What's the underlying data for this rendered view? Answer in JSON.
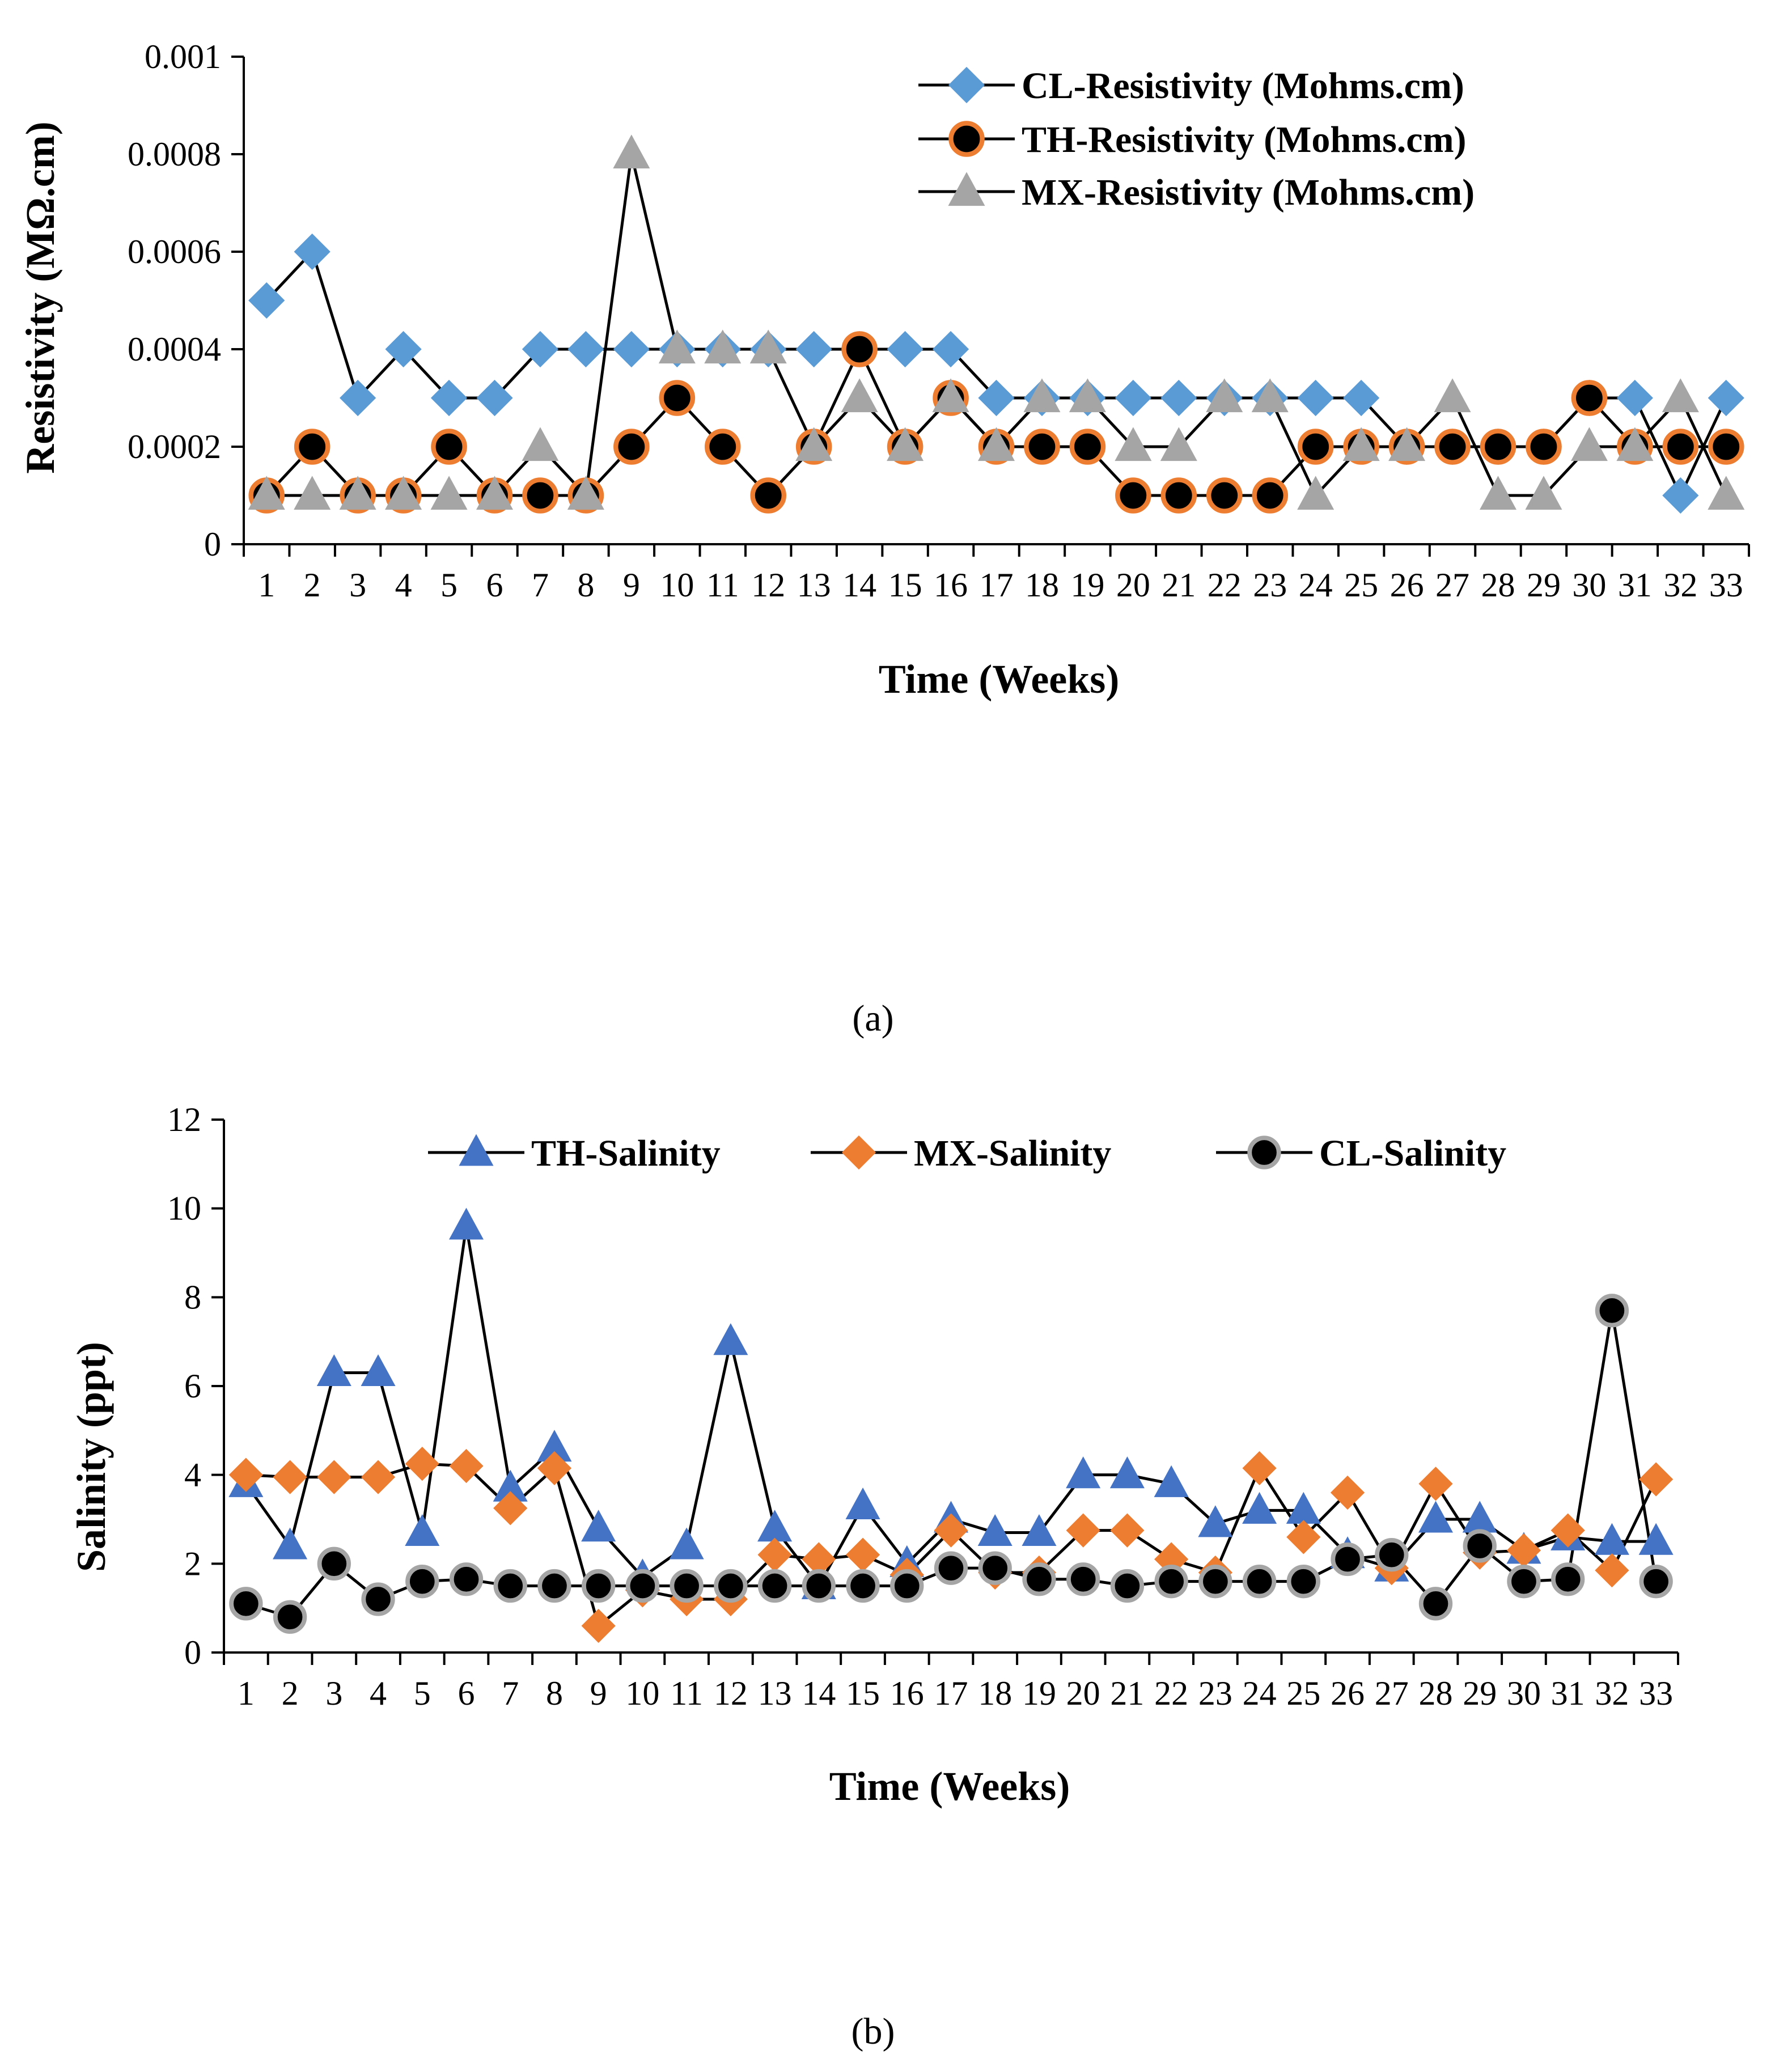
{
  "chart_data": [
    {
      "type": "line",
      "caption": "(a)",
      "xlabel": "Time (Weeks)",
      "ylabel": "Resistivity (MΩ.cm)",
      "ylim": [
        0,
        0.001
      ],
      "yticks": [
        "0",
        "0.0002",
        "0.0004",
        "0.0006",
        "0.0008",
        "0.001"
      ],
      "x": [
        1,
        2,
        3,
        4,
        5,
        6,
        7,
        8,
        9,
        10,
        11,
        12,
        13,
        14,
        15,
        16,
        17,
        18,
        19,
        20,
        21,
        22,
        23,
        24,
        25,
        26,
        27,
        28,
        29,
        30,
        31,
        32,
        33
      ],
      "legend_position": "top-right",
      "series": [
        {
          "name": "CL-Resistivity (Mohms.cm)",
          "marker": "diamond",
          "fill": "#5b9bd5",
          "stroke": "#5b9bd5",
          "values": [
            0.0005,
            0.0006,
            0.0003,
            0.0004,
            0.0003,
            0.0003,
            0.0004,
            0.0004,
            0.0004,
            0.0004,
            0.0004,
            0.0004,
            0.0004,
            0.0004,
            0.0004,
            0.0004,
            0.0003,
            0.0003,
            0.0003,
            0.0003,
            0.0003,
            0.0003,
            0.0003,
            0.0003,
            0.0003,
            0.0002,
            0.0002,
            0.0002,
            0.0002,
            0.0003,
            0.0003,
            0.0001,
            0.0003
          ]
        },
        {
          "name": "TH-Resistivity (Mohms.cm)",
          "marker": "circle",
          "fill": "#000000",
          "stroke": "#ed7d31",
          "values": [
            0.0001,
            0.0002,
            0.0001,
            0.0001,
            0.0002,
            0.0001,
            0.0001,
            0.0001,
            0.0002,
            0.0003,
            0.0002,
            0.0001,
            0.0002,
            0.0004,
            0.0002,
            0.0003,
            0.0002,
            0.0002,
            0.0002,
            0.0001,
            0.0001,
            0.0001,
            0.0001,
            0.0002,
            0.0002,
            0.0002,
            0.0002,
            0.0002,
            0.0002,
            0.0003,
            0.0002,
            0.0002,
            0.0002
          ]
        },
        {
          "name": "MX-Resistivity (Mohms.cm)",
          "marker": "triangle",
          "fill": "#a5a5a5",
          "stroke": "#a5a5a5",
          "values": [
            0.0001,
            0.0001,
            0.0001,
            0.0001,
            0.0001,
            0.0001,
            0.0002,
            0.0001,
            0.0008,
            0.0004,
            0.0004,
            0.0004,
            0.0002,
            0.0003,
            0.0002,
            0.0003,
            0.0002,
            0.0003,
            0.0003,
            0.0002,
            0.0002,
            0.0003,
            0.0003,
            0.0001,
            0.0002,
            0.0002,
            0.0003,
            0.0001,
            0.0001,
            0.0002,
            0.0002,
            0.0003,
            0.0001
          ]
        }
      ]
    },
    {
      "type": "line",
      "caption": "(b)",
      "xlabel": "Time (Weeks)",
      "ylabel": "Salinity (ppt)",
      "ylim": [
        0,
        12
      ],
      "yticks": [
        "0",
        "2",
        "4",
        "6",
        "8",
        "10",
        "12"
      ],
      "x": [
        1,
        2,
        3,
        4,
        5,
        6,
        7,
        8,
        9,
        10,
        11,
        12,
        13,
        14,
        15,
        16,
        17,
        18,
        19,
        20,
        21,
        22,
        23,
        24,
        25,
        26,
        27,
        28,
        29,
        30,
        31,
        32,
        33
      ],
      "legend_position": "top",
      "series": [
        {
          "name": "TH-Salinity",
          "marker": "triangle",
          "fill": "#4472c4",
          "stroke": "#4472c4",
          "values": [
            3.8,
            2.4,
            6.3,
            6.3,
            2.7,
            9.6,
            3.7,
            4.6,
            2.8,
            1.7,
            2.4,
            7.0,
            2.8,
            1.5,
            3.3,
            2.0,
            3.0,
            2.7,
            2.7,
            4.0,
            4.0,
            3.8,
            2.9,
            3.2,
            3.2,
            2.2,
            1.9,
            3.0,
            3.0,
            2.3,
            2.6,
            2.5,
            2.5
          ]
        },
        {
          "name": "MX-Salinity",
          "marker": "diamond",
          "fill": "#ed7d31",
          "stroke": "#ed7d31",
          "values": [
            4.0,
            3.95,
            3.95,
            3.95,
            4.25,
            4.2,
            3.25,
            4.15,
            0.6,
            1.4,
            1.2,
            1.2,
            2.2,
            2.1,
            2.2,
            1.75,
            2.75,
            1.8,
            1.8,
            2.75,
            2.75,
            2.1,
            1.8,
            4.15,
            2.6,
            3.6,
            1.9,
            3.8,
            2.25,
            2.3,
            2.75,
            1.85,
            3.9
          ]
        },
        {
          "name": "CL-Salinity",
          "marker": "circle",
          "fill": "#000000",
          "stroke": "#a5a5a5",
          "values": [
            1.1,
            0.8,
            2.0,
            1.2,
            1.6,
            1.65,
            1.5,
            1.5,
            1.5,
            1.5,
            1.5,
            1.5,
            1.5,
            1.5,
            1.5,
            1.5,
            1.9,
            1.9,
            1.65,
            1.65,
            1.5,
            1.6,
            1.6,
            1.6,
            1.6,
            2.1,
            2.2,
            1.1,
            2.4,
            1.6,
            1.65,
            7.7,
            1.6
          ]
        }
      ]
    }
  ]
}
